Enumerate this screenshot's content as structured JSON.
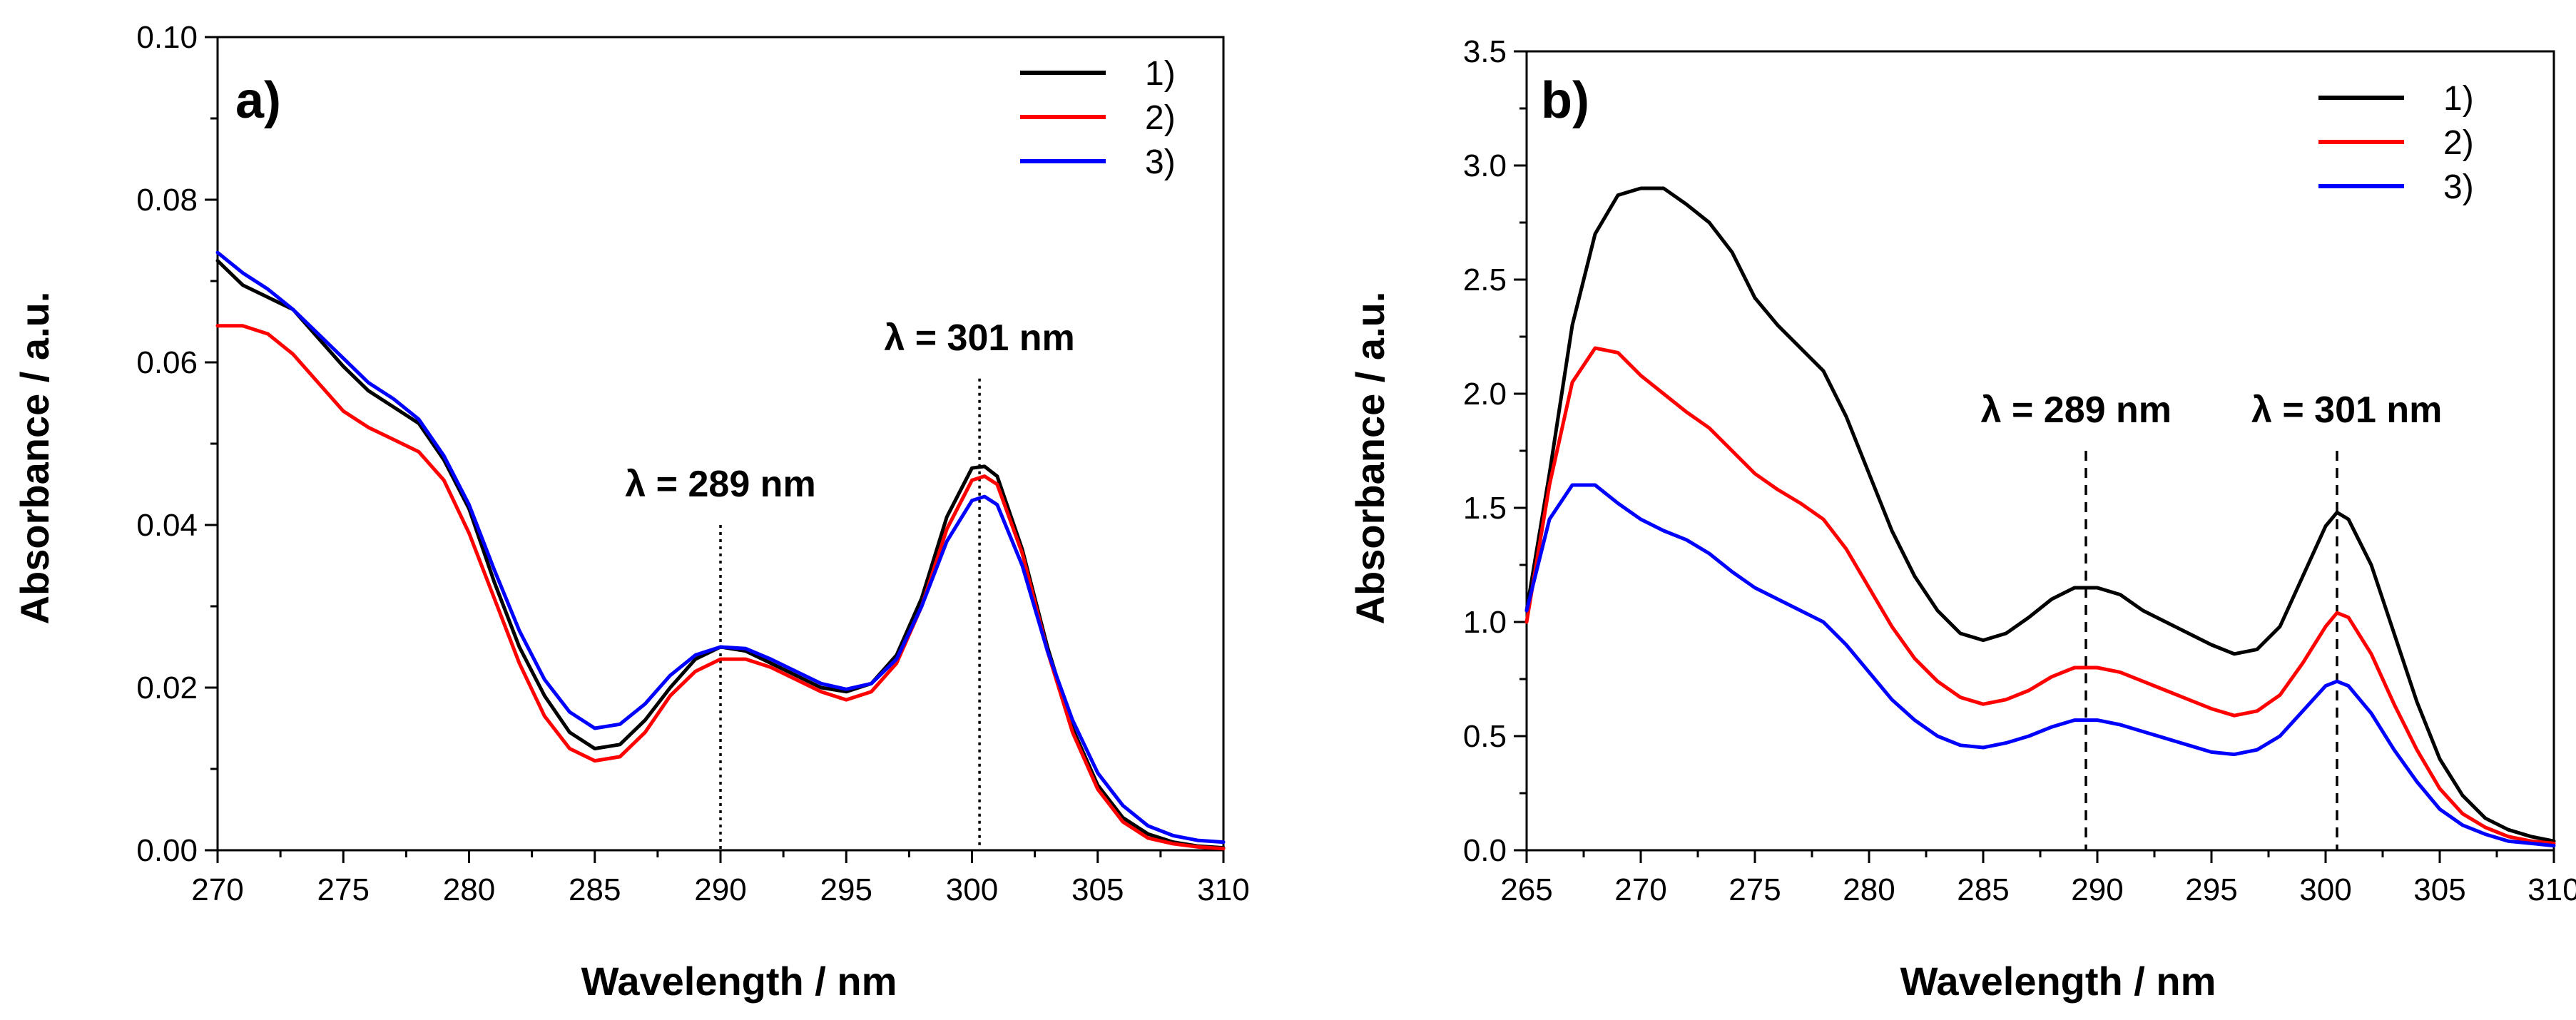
{
  "chart_data": [
    {
      "type": "line",
      "panel_label": "a)",
      "xlabel": "Wavelength / nm",
      "ylabel": "Absorbance / a.u.",
      "xlim": [
        270,
        310
      ],
      "ylim": [
        0,
        0.1
      ],
      "xticks": [
        "270",
        "275",
        "280",
        "285",
        "290",
        "295",
        "300",
        "305",
        "310"
      ],
      "yticks": [
        "0.00",
        "0.02",
        "0.04",
        "0.06",
        "0.08",
        "0.10"
      ],
      "legend_position": "top-right",
      "annotations": [
        {
          "text": "λ = 289 nm",
          "x": 290,
          "line_top": 0.04,
          "style": "dotted"
        },
        {
          "text": "λ = 301 nm",
          "x": 300.3,
          "line_top": 0.058,
          "style": "dotted"
        }
      ],
      "series": [
        {
          "name": "1)",
          "color": "#000000",
          "x": [
            270,
            271,
            272,
            273,
            274,
            275,
            276,
            277,
            278,
            279,
            280,
            281,
            282,
            283,
            284,
            285,
            286,
            287,
            288,
            289,
            290,
            291,
            292,
            293,
            294,
            295,
            296,
            297,
            298,
            299,
            300,
            300.5,
            301,
            302,
            303,
            304,
            305,
            306,
            307,
            308,
            309,
            310
          ],
          "y": [
            0.0725,
            0.0695,
            0.068,
            0.0665,
            0.063,
            0.0595,
            0.0565,
            0.0545,
            0.0525,
            0.048,
            0.042,
            0.033,
            0.025,
            0.019,
            0.0145,
            0.0125,
            0.013,
            0.016,
            0.02,
            0.0235,
            0.025,
            0.0245,
            0.023,
            0.0215,
            0.02,
            0.0195,
            0.0205,
            0.024,
            0.031,
            0.041,
            0.047,
            0.0472,
            0.046,
            0.037,
            0.025,
            0.015,
            0.008,
            0.004,
            0.002,
            0.001,
            0.0005,
            0.0003
          ]
        },
        {
          "name": "2)",
          "color": "#ff0000",
          "x": [
            270,
            271,
            272,
            273,
            274,
            275,
            276,
            277,
            278,
            279,
            280,
            281,
            282,
            283,
            284,
            285,
            286,
            287,
            288,
            289,
            290,
            291,
            292,
            293,
            294,
            295,
            296,
            297,
            298,
            299,
            300,
            300.5,
            301,
            302,
            303,
            304,
            305,
            306,
            307,
            308,
            309,
            310
          ],
          "y": [
            0.0645,
            0.0645,
            0.0635,
            0.061,
            0.0575,
            0.054,
            0.052,
            0.0505,
            0.049,
            0.0455,
            0.039,
            0.031,
            0.023,
            0.0165,
            0.0125,
            0.011,
            0.0115,
            0.0145,
            0.019,
            0.022,
            0.0235,
            0.0235,
            0.0225,
            0.021,
            0.0195,
            0.0185,
            0.0195,
            0.023,
            0.03,
            0.0395,
            0.0455,
            0.046,
            0.045,
            0.0365,
            0.0245,
            0.0145,
            0.0075,
            0.0035,
            0.0015,
            0.0008,
            0.0004,
            0.0002
          ]
        },
        {
          "name": "3)",
          "color": "#0000ff",
          "x": [
            270,
            271,
            272,
            273,
            274,
            275,
            276,
            277,
            278,
            279,
            280,
            281,
            282,
            283,
            284,
            285,
            286,
            287,
            288,
            289,
            290,
            291,
            292,
            293,
            294,
            295,
            296,
            297,
            298,
            299,
            300,
            300.5,
            301,
            302,
            303,
            304,
            305,
            306,
            307,
            308,
            309,
            310
          ],
          "y": [
            0.0735,
            0.071,
            0.069,
            0.0665,
            0.0635,
            0.0605,
            0.0575,
            0.0555,
            0.053,
            0.0485,
            0.0425,
            0.0345,
            0.027,
            0.021,
            0.017,
            0.015,
            0.0155,
            0.018,
            0.0215,
            0.024,
            0.025,
            0.0248,
            0.0235,
            0.022,
            0.0205,
            0.0198,
            0.0205,
            0.0235,
            0.03,
            0.038,
            0.043,
            0.0435,
            0.0425,
            0.035,
            0.0245,
            0.016,
            0.0095,
            0.0055,
            0.003,
            0.0018,
            0.0012,
            0.001
          ]
        }
      ]
    },
    {
      "type": "line",
      "panel_label": "b)",
      "xlabel": "Wavelength / nm",
      "ylabel": "Absorbance / a.u.",
      "xlim": [
        265,
        310
      ],
      "ylim": [
        0,
        3.5
      ],
      "xticks": [
        "265",
        "270",
        "275",
        "280",
        "285",
        "290",
        "295",
        "300",
        "305",
        "310"
      ],
      "yticks": [
        "0.0",
        "0.5",
        "1.0",
        "1.5",
        "2.0",
        "2.5",
        "3.0",
        "3.5"
      ],
      "legend_position": "top-right",
      "annotations": [
        {
          "text": "λ = 289 nm",
          "x": 289.5,
          "line_top": 1.75,
          "style": "dashed"
        },
        {
          "text": "λ = 301 nm",
          "x": 300.5,
          "line_top": 1.75,
          "style": "dashed"
        }
      ],
      "series": [
        {
          "name": "1)",
          "color": "#000000",
          "x": [
            265,
            266,
            267,
            268,
            269,
            270,
            271,
            272,
            273,
            274,
            275,
            276,
            277,
            278,
            279,
            280,
            281,
            282,
            283,
            284,
            285,
            286,
            287,
            288,
            289,
            290,
            291,
            292,
            293,
            294,
            295,
            296,
            297,
            298,
            299,
            300,
            300.5,
            301,
            302,
            303,
            304,
            305,
            306,
            307,
            308,
            309,
            310
          ],
          "y": [
            1.05,
            1.65,
            2.3,
            2.7,
            2.87,
            2.9,
            2.9,
            2.83,
            2.75,
            2.62,
            2.42,
            2.3,
            2.2,
            2.1,
            1.9,
            1.65,
            1.4,
            1.2,
            1.05,
            0.95,
            0.92,
            0.95,
            1.02,
            1.1,
            1.15,
            1.15,
            1.12,
            1.05,
            1.0,
            0.95,
            0.9,
            0.86,
            0.88,
            0.98,
            1.2,
            1.42,
            1.48,
            1.45,
            1.25,
            0.95,
            0.65,
            0.4,
            0.24,
            0.14,
            0.09,
            0.06,
            0.04
          ]
        },
        {
          "name": "2)",
          "color": "#ff0000",
          "x": [
            265,
            266,
            267,
            268,
            269,
            270,
            271,
            272,
            273,
            274,
            275,
            276,
            277,
            278,
            279,
            280,
            281,
            282,
            283,
            284,
            285,
            286,
            287,
            288,
            289,
            290,
            291,
            292,
            293,
            294,
            295,
            296,
            297,
            298,
            299,
            300,
            300.5,
            301,
            302,
            303,
            304,
            305,
            306,
            307,
            308,
            309,
            310
          ],
          "y": [
            1.0,
            1.6,
            2.05,
            2.2,
            2.18,
            2.08,
            2.0,
            1.92,
            1.85,
            1.75,
            1.65,
            1.58,
            1.52,
            1.45,
            1.32,
            1.15,
            0.98,
            0.84,
            0.74,
            0.67,
            0.64,
            0.66,
            0.7,
            0.76,
            0.8,
            0.8,
            0.78,
            0.74,
            0.7,
            0.66,
            0.62,
            0.59,
            0.61,
            0.68,
            0.82,
            0.98,
            1.04,
            1.02,
            0.86,
            0.64,
            0.44,
            0.27,
            0.16,
            0.1,
            0.06,
            0.04,
            0.03
          ]
        },
        {
          "name": "3)",
          "color": "#0000ff",
          "x": [
            265,
            266,
            267,
            268,
            269,
            270,
            271,
            272,
            273,
            274,
            275,
            276,
            277,
            278,
            279,
            280,
            281,
            282,
            283,
            284,
            285,
            286,
            287,
            288,
            289,
            290,
            291,
            292,
            293,
            294,
            295,
            296,
            297,
            298,
            299,
            300,
            300.5,
            301,
            302,
            303,
            304,
            305,
            306,
            307,
            308,
            309,
            310
          ],
          "y": [
            1.05,
            1.45,
            1.6,
            1.6,
            1.52,
            1.45,
            1.4,
            1.36,
            1.3,
            1.22,
            1.15,
            1.1,
            1.05,
            1.0,
            0.9,
            0.78,
            0.66,
            0.57,
            0.5,
            0.46,
            0.45,
            0.47,
            0.5,
            0.54,
            0.57,
            0.57,
            0.55,
            0.52,
            0.49,
            0.46,
            0.43,
            0.42,
            0.44,
            0.5,
            0.61,
            0.72,
            0.74,
            0.72,
            0.6,
            0.44,
            0.3,
            0.18,
            0.11,
            0.07,
            0.04,
            0.03,
            0.02
          ]
        }
      ]
    }
  ]
}
